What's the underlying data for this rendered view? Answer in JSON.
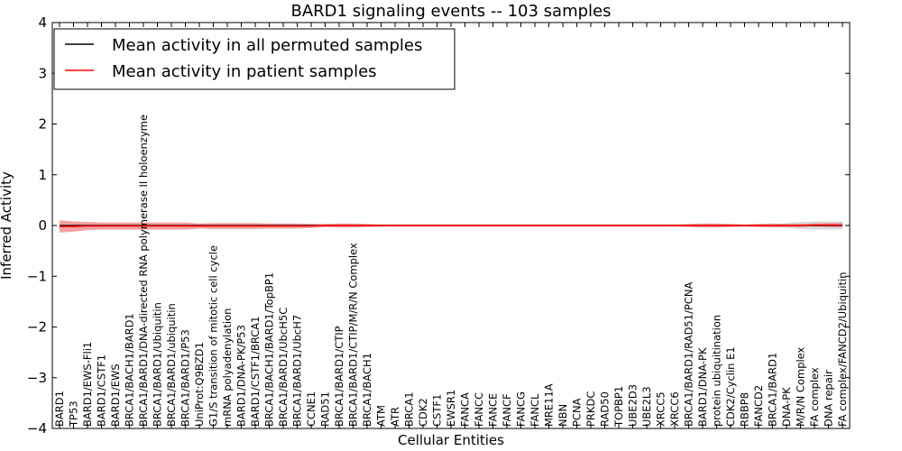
{
  "chart_data": {
    "type": "line",
    "title": "BARD1 signaling events -- 103 samples",
    "xlabel": "Cellular Entities",
    "ylabel": "Inferred Activity",
    "ylim": [
      -4,
      4
    ],
    "yticks": [
      "−4",
      "−3",
      "−2",
      "−1",
      "0",
      "1",
      "2",
      "3",
      "4"
    ],
    "legend_position": "top-left",
    "colors": {
      "permuted": "#000000",
      "patient": "#ff0000",
      "patient_band": "#f08080",
      "permuted_band": "#bfbfbf"
    },
    "categories": [
      "BARD1",
      "TP53",
      "BARD1/EWS-Fli1",
      "BARD1/CSTF1",
      "BARD1/EWS",
      "BRCA1/BACH1/BARD1",
      "BRCA1/BARD1/DNA-directed RNA polymerase II holoenzyme",
      "BRCA1/BARD1/Ubiquitin",
      "BRCA1/BARD1/ubiquitin",
      "BRCA1/BARD1/P53",
      "UniProt:Q9BZD1",
      "G1/S transition of mitotic cell cycle",
      "mRNA polyadenylation",
      "BARD1/DNA-PK/P53",
      "BARD1/CSTF1/BRCA1",
      "BRCA1/BACH1/BARD1/TopBP1",
      "BRCA1/BARD1/UbcH5C",
      "BRCA1/BARD1/UbcH7",
      "CCNE1",
      "RAD51",
      "BRCA1/BARD1/CTIP",
      "BRCA1/BARD1/CTIP/M/R/N Complex",
      "BRCA1/BACH1",
      "ATM",
      "ATR",
      "BRCA1",
      "CDK2",
      "CSTF1",
      "EWSR1",
      "FANCA",
      "FANCC",
      "FANCE",
      "FANCF",
      "FANCG",
      "FANCL",
      "MRE11A",
      "NBN",
      "PCNA",
      "PRKDC",
      "RAD50",
      "TOPBP1",
      "UBE2D3",
      "UBE2L3",
      "XRCC5",
      "XRCC6",
      "BRCA1/BARD1/RAD51/PCNA",
      "BARD1/DNA-PK",
      "protein ubiquitination",
      "CDK2/Cyclin E1",
      "RBBP8",
      "FANCD2",
      "BRCA1/BARD1",
      "DNA-PK",
      "M/R/N Complex",
      "FA complex",
      "DNA repair",
      "FA complex/FANCD2/Ubiquitin"
    ],
    "series": [
      {
        "name": "Mean activity in all permuted samples",
        "color": "#000000",
        "values": [
          0,
          0,
          0,
          0,
          0,
          0,
          0,
          0,
          0,
          0,
          0,
          0,
          0,
          0,
          0,
          0,
          0,
          0,
          0,
          0,
          0,
          0,
          0,
          0,
          0,
          0,
          0,
          0,
          0,
          0,
          0,
          0,
          0,
          0,
          0,
          0,
          0,
          0,
          0,
          0,
          0,
          0,
          0,
          0,
          0,
          0,
          0,
          0,
          0,
          0,
          0,
          0,
          0,
          0,
          0,
          0,
          0
        ],
        "band": [
          0.02,
          0.02,
          0.02,
          0.02,
          0.02,
          0.02,
          0.02,
          0.02,
          0.02,
          0.02,
          0.02,
          0.02,
          0.02,
          0.02,
          0.02,
          0.02,
          0.02,
          0.02,
          0.02,
          0.02,
          0.02,
          0.02,
          0.02,
          0.02,
          0.02,
          0.02,
          0.02,
          0.02,
          0.02,
          0.02,
          0.02,
          0.02,
          0.02,
          0.02,
          0.02,
          0.02,
          0.02,
          0.02,
          0.02,
          0.02,
          0.02,
          0.02,
          0.02,
          0.02,
          0.02,
          0.02,
          0.02,
          0.02,
          0.02,
          0.02,
          0.02,
          0.02,
          0.05,
          0.07,
          0.08,
          0.08,
          0.08
        ]
      },
      {
        "name": "Mean activity in patient samples",
        "color": "#ff0000",
        "values": [
          -0.02,
          -0.02,
          -0.01,
          -0.01,
          -0.01,
          -0.01,
          -0.01,
          -0.01,
          -0.01,
          -0.01,
          -0.01,
          -0.01,
          -0.01,
          -0.01,
          -0.01,
          -0.01,
          -0.01,
          -0.01,
          -0.01,
          0,
          0,
          0,
          0,
          0,
          0,
          0,
          0,
          0,
          0,
          0,
          0,
          0,
          0,
          0,
          0,
          0,
          0,
          0,
          0,
          0,
          0,
          0,
          0,
          0,
          0,
          0,
          0,
          0,
          0,
          0,
          0,
          0,
          0,
          0,
          0.01,
          0.01,
          0.01
        ],
        "band": [
          0.12,
          0.1,
          0.08,
          0.07,
          0.07,
          0.07,
          0.07,
          0.07,
          0.07,
          0.07,
          0.05,
          0.06,
          0.06,
          0.06,
          0.06,
          0.05,
          0.05,
          0.05,
          0.04,
          0.03,
          0.04,
          0.04,
          0.03,
          0.02,
          0.02,
          0.02,
          0.02,
          0.02,
          0.02,
          0.02,
          0.02,
          0.02,
          0.02,
          0.02,
          0.02,
          0.02,
          0.02,
          0.02,
          0.02,
          0.02,
          0.02,
          0.02,
          0.02,
          0.02,
          0.02,
          0.03,
          0.04,
          0.04,
          0.03,
          0.02,
          0.03,
          0.04,
          0.03,
          0.03,
          0.03,
          0.04,
          0.04
        ]
      }
    ]
  }
}
